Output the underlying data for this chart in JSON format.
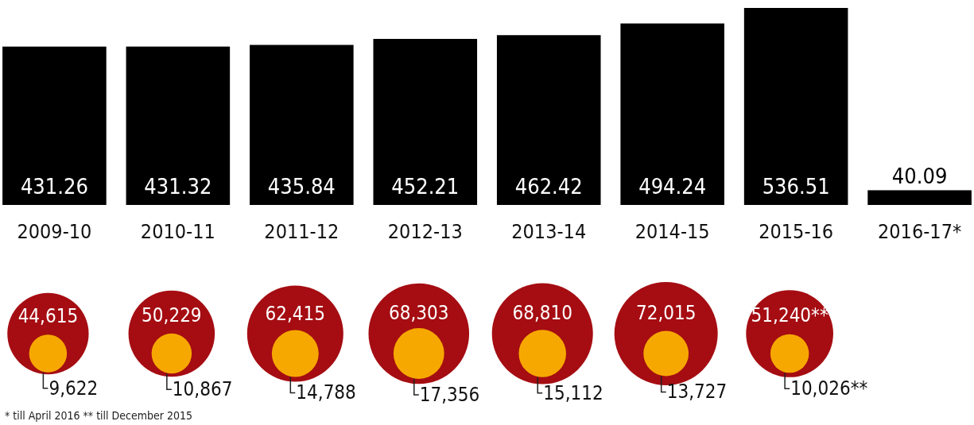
{
  "chart_data": [
    {
      "type": "bar",
      "categories": [
        "2009-10",
        "2010-11",
        "2011-12",
        "2012-13",
        "2013-14",
        "2014-15",
        "2015-16",
        "2016-17*"
      ],
      "values": [
        431.26,
        431.32,
        435.84,
        452.21,
        462.42,
        494.24,
        536.51,
        40.09
      ],
      "color": "#000000",
      "data_labels": true
    },
    {
      "type": "other",
      "categories": [
        null,
        null,
        null,
        null,
        null,
        null,
        null,
        null
      ],
      "color": "#a50d12",
      "values": [
        44615,
        50229,
        62415,
        68303,
        68810,
        72015,
        51240,
        null
      ],
      "value_labels": [
        "44,615",
        "50,229",
        "62,415",
        "68,303",
        "68,810",
        "72,015",
        "51,240**",
        null
      ]
    },
    {
      "type": "other",
      "categories": [
        null,
        null,
        null,
        null,
        null,
        null,
        null,
        null
      ],
      "color": "#f7a800",
      "values": [
        9622,
        10867,
        14788,
        17356,
        15112,
        13727,
        10026,
        null
      ],
      "value_labels": [
        "9,622",
        "10,867",
        "14,788",
        "17,356",
        "15,112",
        "13,727",
        "10,026**",
        null
      ],
      "annotations": [
        "* till April 2016 ** till December 2015"
      ]
    }
  ]
}
